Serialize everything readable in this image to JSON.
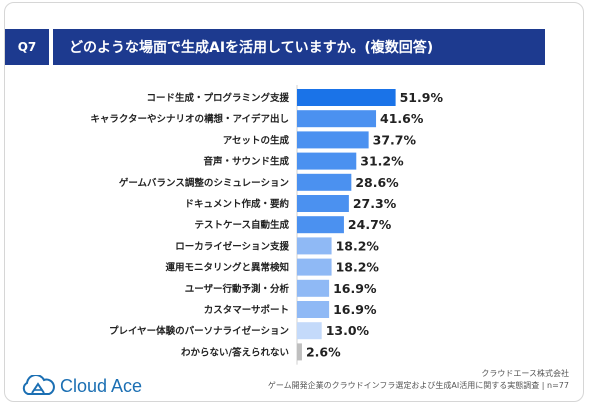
{
  "header": {
    "badge": "Q7",
    "question": "どのような場面で生成AIを活用していますか。(複数回答)"
  },
  "footer": {
    "logo_text": "Cloud Ace",
    "company": "クラウドエース株式会社",
    "survey": "ゲーム開発企業のクラウドインフラ選定および生成AI活用に関する実態調査 | n=77"
  },
  "colors": {
    "header": "#1d3a8f",
    "bar_top": "#1a73e8",
    "bar_strong": "#4b91f0",
    "bar_mid": "#8fb9f5",
    "bar_light": "#c4dafa",
    "bar_other": "#bfbfbf"
  },
  "chart_data": {
    "type": "bar",
    "orientation": "horizontal",
    "categories": [
      "コード生成・プログラミング支援",
      "キャラクターやシナリオの構想・アイデア出し",
      "アセットの生成",
      "音声・サウンド生成",
      "ゲームバランス調整のシミュレーション",
      "ドキュメント作成・要約",
      "テストケース自動生成",
      "ローカライゼーション支援",
      "運用モニタリングと異常検知",
      "ユーザー行動予測・分析",
      "カスタマーサポート",
      "プレイヤー体験のパーソナライゼーション",
      "わからない/答えられない"
    ],
    "values": [
      51.9,
      41.6,
      37.7,
      31.2,
      28.6,
      27.3,
      24.7,
      18.2,
      18.2,
      16.9,
      16.9,
      13.0,
      2.6
    ],
    "value_labels": [
      "51.9%",
      "41.6%",
      "37.7%",
      "31.2%",
      "28.6%",
      "27.3%",
      "24.7%",
      "18.2%",
      "18.2%",
      "16.9%",
      "16.9%",
      "13.0%",
      "2.6%"
    ],
    "unit": "%",
    "xlim": [
      0,
      60
    ]
  }
}
